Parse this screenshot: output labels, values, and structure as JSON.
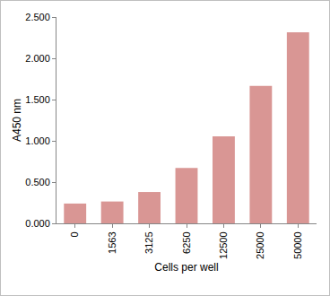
{
  "chart_data": {
    "type": "bar",
    "x_label": "Cells per well",
    "y_label": "A450 nm",
    "categories": [
      "0",
      "1563",
      "3125",
      "6250",
      "12500",
      "25000",
      "50000"
    ],
    "values": [
      0.24,
      0.265,
      0.38,
      0.67,
      1.055,
      1.665,
      2.315
    ],
    "color": "#d99694",
    "ylim": [
      0,
      2.5
    ],
    "yticks": [
      {
        "value": 0,
        "label": "0.000"
      },
      {
        "value": 0.5,
        "label": "0.500"
      },
      {
        "value": 1,
        "label": "1.000"
      },
      {
        "value": 1.5,
        "label": "1.500"
      },
      {
        "value": 2,
        "label": "2.000"
      },
      {
        "value": 2.5,
        "label": "2.500"
      }
    ],
    "grid": false
  }
}
